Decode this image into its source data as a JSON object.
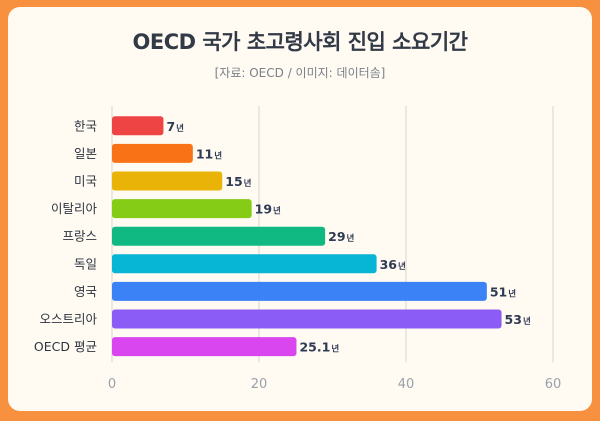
{
  "title": "OECD 국가 초고령사회 진입 소요기간",
  "subtitle": "[자료: OECD / 이미지: 데이터솜]",
  "chart_data": {
    "type": "bar",
    "orientation": "horizontal",
    "title": "OECD 국가 초고령사회 진입 소요기간",
    "subtitle": "[자료: OECD / 이미지: 데이터솜]",
    "categories": [
      "한국",
      "일본",
      "미국",
      "이탈리아",
      "프랑스",
      "독일",
      "영국",
      "오스트리아",
      "OECD 평균"
    ],
    "values": [
      7,
      11,
      15,
      19,
      29,
      36,
      51,
      53,
      25.1
    ],
    "value_labels": [
      "7",
      "11",
      "15",
      "19",
      "29",
      "36",
      "51",
      "53",
      "25.1"
    ],
    "unit": "년",
    "colors": [
      "#ef4444",
      "#f97316",
      "#eab308",
      "#84cc16",
      "#10b981",
      "#06b6d4",
      "#3b82f6",
      "#8b5cf6",
      "#d946ef"
    ],
    "xlim": [
      0,
      60
    ],
    "xticks": [
      0,
      20,
      40,
      60
    ],
    "xtick_labels": [
      "0",
      "20",
      "40",
      "60"
    ],
    "grid": true,
    "legend": false
  }
}
